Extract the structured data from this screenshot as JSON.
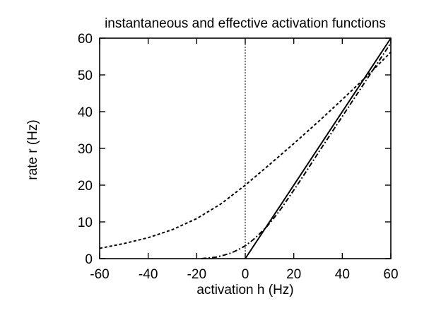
{
  "chart_data": {
    "type": "line",
    "title": "instantaneous and effective activation functions",
    "xlabel": "activation h (Hz)",
    "ylabel": "rate r (Hz)",
    "xlim": [
      -60,
      60
    ],
    "ylim": [
      0,
      60
    ],
    "xticks": [
      -60,
      -40,
      -20,
      0,
      20,
      40,
      60
    ],
    "yticks": [
      0,
      10,
      20,
      30,
      40,
      50,
      60
    ],
    "grid": false,
    "legend": "none",
    "reference_lines": [
      {
        "axis": "x",
        "value": 0,
        "style": "dotted"
      }
    ],
    "series": [
      {
        "style": "solid",
        "x": [
          0,
          60
        ],
        "y": [
          0,
          60
        ]
      },
      {
        "style": "dash-dot",
        "x": [
          -18,
          -15,
          -12,
          -9,
          -6,
          -3,
          0,
          3,
          6,
          9,
          12,
          15,
          18,
          21,
          25,
          30,
          35,
          40,
          45,
          50,
          55,
          60
        ],
        "y": [
          0,
          0.2,
          0.4,
          0.9,
          1.5,
          2.4,
          3.5,
          5.0,
          6.8,
          8.8,
          11.2,
          13.8,
          16.7,
          19.6,
          23.6,
          28.7,
          33.7,
          38.7,
          43.7,
          48.7,
          53.7,
          58.7
        ]
      },
      {
        "style": "dashed",
        "x": [
          -60,
          -50,
          -40,
          -30,
          -20,
          -10,
          0,
          10,
          20,
          30,
          40,
          50,
          60
        ],
        "y": [
          2.8,
          4.1,
          5.7,
          7.9,
          10.9,
          14.9,
          20.0,
          25.6,
          31.3,
          37.2,
          43.3,
          49.6,
          56.2
        ]
      }
    ]
  }
}
